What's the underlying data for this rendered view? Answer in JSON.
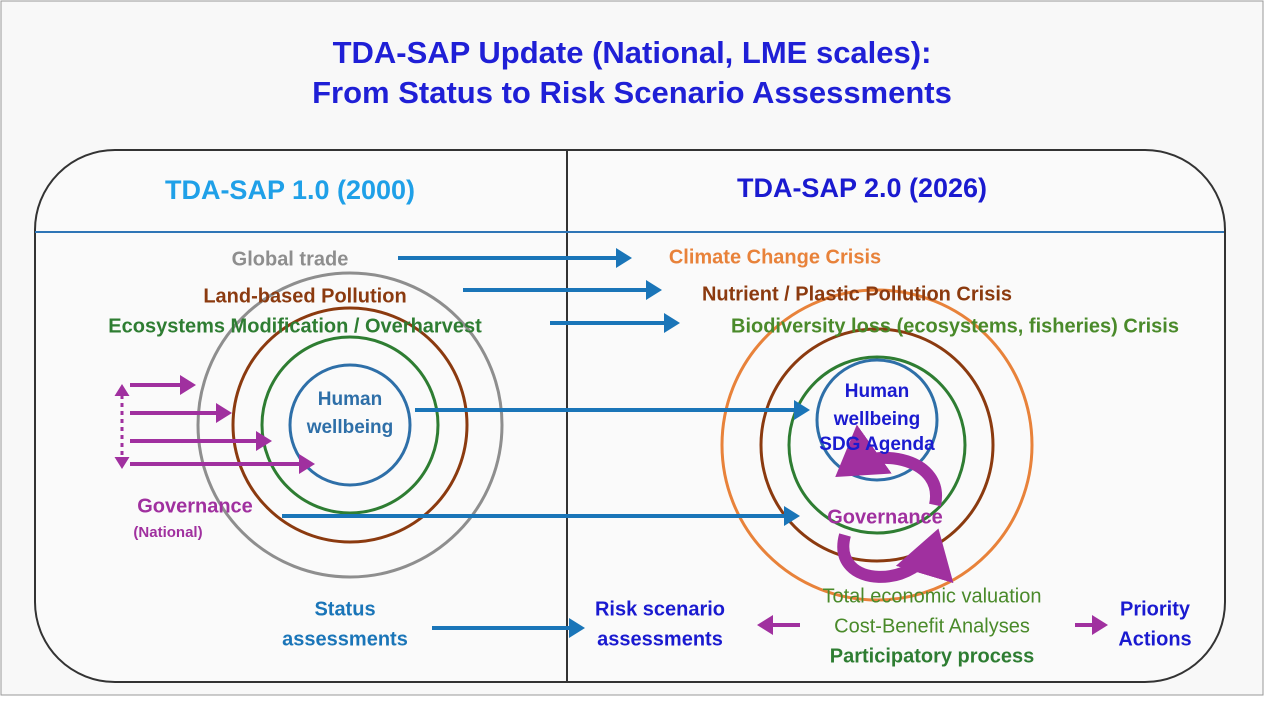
{
  "title": [
    "TDA-SAP Update (National, LME scales):",
    "From Status to Risk Scenario Assessments"
  ],
  "left": {
    "header": "TDA-SAP 1.0 (2000)",
    "drivers": [
      "Global trade",
      "Land-based Pollution",
      "Ecosystems Modification / Overharvest"
    ],
    "core": [
      "Human",
      "wellbeing"
    ],
    "governance": "Governance",
    "governance_note": "(National)",
    "assessment": [
      "Status",
      "assessments"
    ]
  },
  "right": {
    "header": "TDA-SAP 2.0 (2026)",
    "drivers": [
      "Climate Change Crisis",
      "Nutrient / Plastic Pollution Crisis",
      "Biodiversity loss (ecosystems, fisheries) Crisis"
    ],
    "core": [
      "Human",
      "wellbeing",
      "SDG Agenda"
    ],
    "governance": "Governance",
    "assessment": [
      "Risk scenario",
      "assessments"
    ],
    "methods": [
      "Total economic valuation",
      "Cost-Benefit Analyses",
      "Participatory process"
    ],
    "outcome": [
      "Priority",
      "Actions"
    ]
  }
}
